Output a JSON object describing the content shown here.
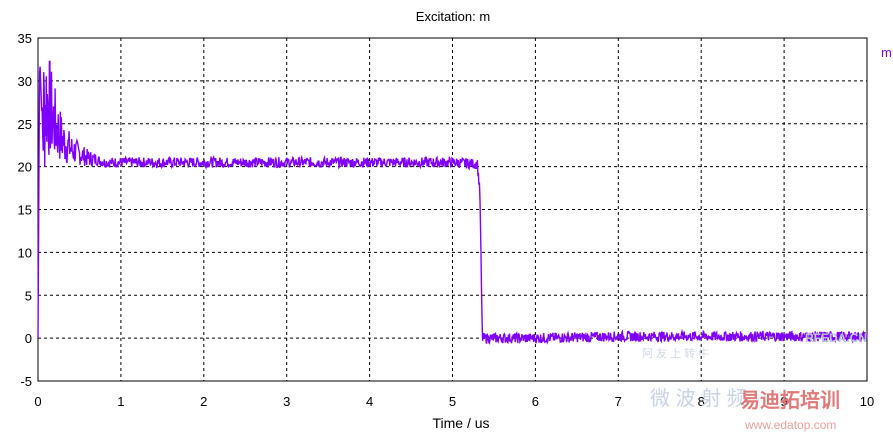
{
  "chart_data": {
    "type": "line",
    "title": "Excitation: m",
    "xlabel": "Time / us",
    "ylabel": "",
    "xlim": [
      0,
      10
    ],
    "ylim": [
      -5,
      35
    ],
    "xticks": [
      "0",
      "1",
      "2",
      "3",
      "4",
      "5",
      "6",
      "7",
      "8",
      "9",
      "10"
    ],
    "yticks": [
      "35",
      "30",
      "25",
      "20",
      "15",
      "10",
      "5",
      "0",
      "-5"
    ],
    "grid": true,
    "legend": "top-right",
    "series": [
      {
        "name": "m",
        "color": "#8000ff",
        "x": [
          0,
          0.02,
          0.05,
          0.1,
          0.2,
          0.3,
          0.4,
          0.5,
          0.6,
          0.7,
          0.8,
          1,
          2,
          3,
          4,
          5,
          5.3,
          5.33,
          5.36,
          5.4,
          6,
          7,
          8,
          9,
          10
        ],
        "y": [
          0,
          33,
          25,
          28,
          25,
          23,
          22,
          21.5,
          21,
          20.8,
          20.5,
          20.5,
          20.5,
          20.5,
          20.5,
          20.5,
          20.3,
          17,
          0,
          0,
          0,
          0.2,
          0.2,
          0.2,
          0.2
        ]
      }
    ]
  },
  "watermark": {
    "line1": "阿 友 上 转 牛",
    "line2": "RFEDA.CN",
    "line3": "微 波 射 频",
    "line4": "易迪拓培训",
    "line5": "www.edatop.com"
  }
}
